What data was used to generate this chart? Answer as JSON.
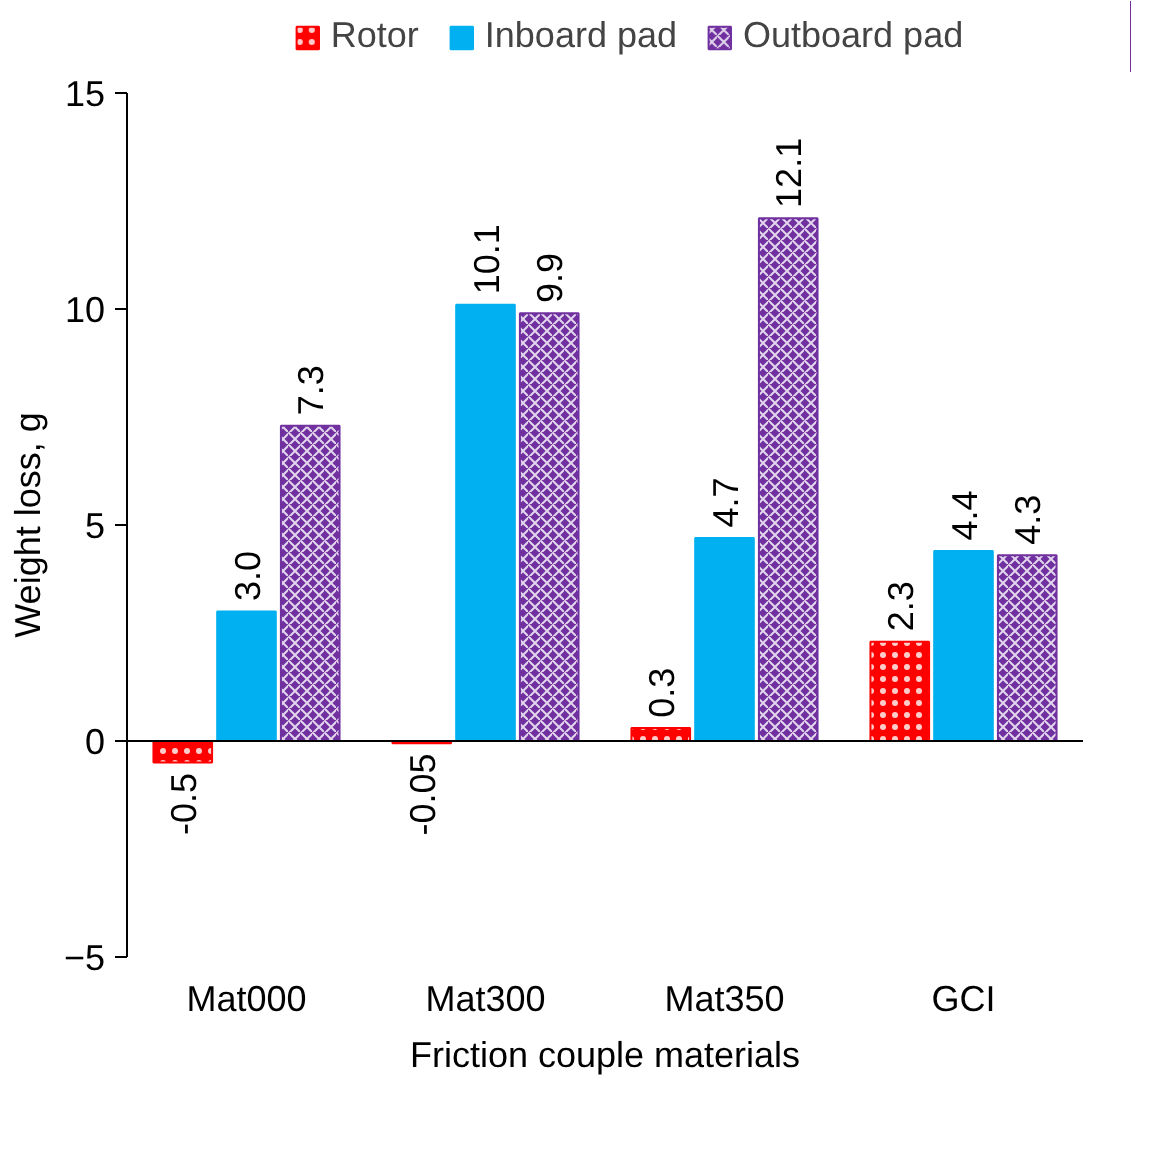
{
  "chart_data": {
    "type": "bar",
    "xlabel": "Friction couple materials",
    "ylabel": "Weight loss, g",
    "categories": [
      "Mat000",
      "Mat300",
      "Mat350",
      "GCI"
    ],
    "series": [
      {
        "name": "Rotor",
        "color": "#ff0000",
        "values": [
          -0.5,
          -0.05,
          0.3,
          2.3
        ],
        "value_labels": [
          "-0.5",
          "-0.05",
          "0.3",
          "2.3"
        ]
      },
      {
        "name": "Inboard pad",
        "color": "#00b0f0",
        "values": [
          3.0,
          10.1,
          4.7,
          4.4
        ],
        "value_labels": [
          "3.0",
          "10.1",
          "4.7",
          "4.4"
        ]
      },
      {
        "name": "Outboard pad",
        "color": "#7030a0",
        "values": [
          7.3,
          9.9,
          12.1,
          4.3
        ],
        "value_labels": [
          "7.3",
          "9.9",
          "12.1",
          "4.3"
        ]
      }
    ],
    "ylim": [
      -5,
      15
    ],
    "yticks": [
      -5,
      0,
      5,
      10,
      15
    ],
    "legend": "top"
  }
}
